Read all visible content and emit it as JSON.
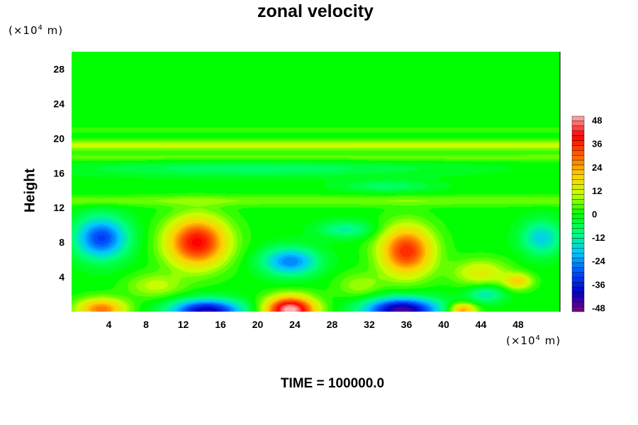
{
  "chart_data": {
    "type": "heatmap",
    "title": "zonal velocity",
    "ylabel": "Height",
    "xlabel": "",
    "x_unit": {
      "prefix": "(×10",
      "exp": "4",
      "suffix": " m)"
    },
    "y_unit": {
      "prefix": "(×10",
      "exp": "4",
      "suffix": " m)"
    },
    "xlim": [
      0,
      52.5
    ],
    "ylim": [
      0,
      30
    ],
    "x_ticks": [
      4,
      8,
      12,
      16,
      20,
      24,
      28,
      32,
      36,
      40,
      44,
      48
    ],
    "y_ticks": [
      4,
      8,
      12,
      16,
      20,
      24,
      28
    ],
    "colorbar": {
      "range": [
        -50,
        50
      ],
      "ticks": [
        48,
        36,
        24,
        12,
        0,
        -12,
        -24,
        -36,
        -48
      ],
      "colors": [
        "#7f007f",
        "#0000c8",
        "#0050ff",
        "#00c8ff",
        "#00ff80",
        "#00ff00",
        "#c8ff00",
        "#ffd000",
        "#ff6000",
        "#ff0000",
        "#ffb0b0"
      ]
    },
    "features": [
      {
        "x": 13.5,
        "y": 8.0,
        "sx": 3.2,
        "sy": 2.8,
        "value": 40
      },
      {
        "x": 36.0,
        "y": 7.0,
        "sx": 2.8,
        "sy": 2.8,
        "value": 36
      },
      {
        "x": 23.5,
        "y": 0.2,
        "sx": 2.6,
        "sy": 1.5,
        "value": 52
      },
      {
        "x": 3.2,
        "y": 0.3,
        "sx": 2.6,
        "sy": 1.2,
        "value": 28
      },
      {
        "x": 42.0,
        "y": 0.2,
        "sx": 1.5,
        "sy": 0.8,
        "value": 26
      },
      {
        "x": 44.0,
        "y": 4.5,
        "sx": 3.0,
        "sy": 1.5,
        "value": 14
      },
      {
        "x": 48.0,
        "y": 3.5,
        "sx": 1.5,
        "sy": 0.9,
        "value": 18
      },
      {
        "x": 3.2,
        "y": 8.5,
        "sx": 2.8,
        "sy": 2.4,
        "value": -32
      },
      {
        "x": 23.5,
        "y": 5.8,
        "sx": 3.0,
        "sy": 1.6,
        "value": -26
      },
      {
        "x": 14.5,
        "y": 0.1,
        "sx": 3.8,
        "sy": 1.3,
        "value": -42
      },
      {
        "x": 35.5,
        "y": 0.2,
        "sx": 4.0,
        "sy": 1.4,
        "value": -46
      },
      {
        "x": 44.5,
        "y": 2.0,
        "sx": 2.0,
        "sy": 1.0,
        "value": -14
      },
      {
        "x": 50.5,
        "y": 8.5,
        "sx": 2.2,
        "sy": 2.0,
        "value": -18
      },
      {
        "x": 29.5,
        "y": 9.5,
        "sx": 3.0,
        "sy": 1.0,
        "value": -12
      },
      {
        "x": 9.0,
        "y": 3.0,
        "sx": 3.0,
        "sy": 1.4,
        "value": 10
      },
      {
        "x": 31.0,
        "y": 3.0,
        "sx": 2.5,
        "sy": 1.5,
        "value": 8
      },
      {
        "x": 20.0,
        "y": 16.5,
        "sx": 20.0,
        "sy": 0.9,
        "value": -8
      },
      {
        "x": 34.0,
        "y": 14.5,
        "sx": 5.0,
        "sy": 0.7,
        "value": -8
      }
    ],
    "bands": [
      {
        "y": 19.2,
        "sy": 0.6,
        "value": 10
      },
      {
        "y": 17.8,
        "sy": 0.5,
        "value": 5
      },
      {
        "y": 12.8,
        "sy": 0.6,
        "value": 6
      },
      {
        "y": 21.0,
        "sy": 0.3,
        "value": 3
      }
    ]
  },
  "footer": {
    "time_label": "TIME = 100000.0"
  }
}
